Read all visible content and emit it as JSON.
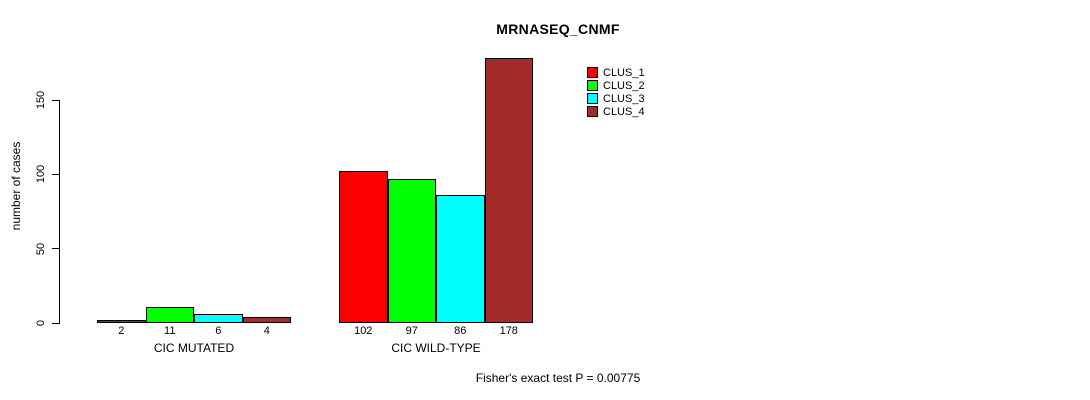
{
  "title": "MRNASEQ_CNMF",
  "y_axis": {
    "label": "number of cases",
    "ticks": [
      0,
      50,
      100,
      150
    ]
  },
  "footer": "Fisher's exact test P = 0.00775",
  "legend": {
    "position": "top-right",
    "items": [
      {
        "label": "CLUS_1",
        "color": "#ff0000"
      },
      {
        "label": "CLUS_2",
        "color": "#00ff00"
      },
      {
        "label": "CLUS_3",
        "color": "#00ffff"
      },
      {
        "label": "CLUS_4",
        "color": "#a52a2a"
      }
    ]
  },
  "chart_data": {
    "type": "bar",
    "title": "MRNASEQ_CNMF",
    "xlabel": "",
    "ylabel": "number of cases",
    "ylim": [
      0,
      150
    ],
    "y_ticks": [
      0,
      50,
      100,
      150
    ],
    "grid": false,
    "legend_position": "top-right",
    "categories": [
      "CIC MUTATED",
      "CIC WILD-TYPE"
    ],
    "series": [
      {
        "name": "CLUS_1",
        "color": "#ff0000",
        "values": [
          2,
          102
        ]
      },
      {
        "name": "CLUS_2",
        "color": "#00ff00",
        "values": [
          11,
          97
        ]
      },
      {
        "name": "CLUS_3",
        "color": "#00ffff",
        "values": [
          6,
          86
        ]
      },
      {
        "name": "CLUS_4",
        "color": "#a52a2a",
        "values": [
          4,
          178
        ]
      }
    ],
    "bar_value_labels": [
      [
        2,
        11,
        6,
        4
      ],
      [
        102,
        97,
        86,
        178
      ]
    ],
    "annotation": "Fisher's exact test P = 0.00775"
  }
}
